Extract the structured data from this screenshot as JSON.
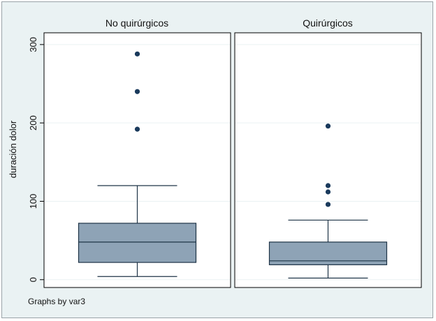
{
  "chart_data": {
    "type": "box",
    "ylabel": "duración dolor",
    "yticks": [
      0,
      100,
      200,
      300
    ],
    "ylim": [
      -10,
      315
    ],
    "grid": true,
    "panels": [
      {
        "title": "No quirúrgicos",
        "whisker_low": 4,
        "q1": 22,
        "median": 48,
        "q3": 72,
        "whisker_high": 120,
        "outliers": [
          192,
          240,
          288
        ]
      },
      {
        "title": "Quirúrgicos",
        "whisker_low": 2,
        "q1": 19,
        "median": 24,
        "q3": 48,
        "whisker_high": 76,
        "outliers": [
          96,
          112,
          120,
          196
        ]
      }
    ],
    "note": "Graphs by var3"
  },
  "colors": {
    "background": "#eaf2f3",
    "box_fill": "#8ea3b6",
    "box_stroke": "#1f3447",
    "outlier": "#1a3a5c"
  }
}
